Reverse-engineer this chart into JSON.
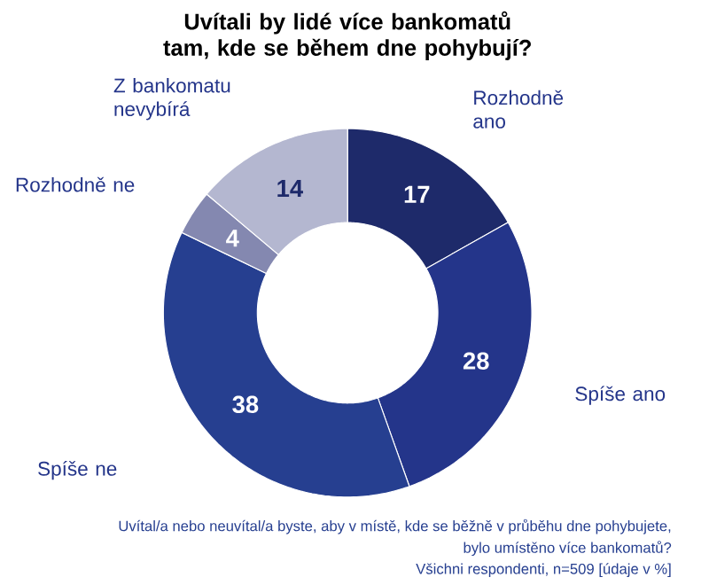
{
  "chart_data": {
    "type": "donut",
    "title": "Uvítali by lidé více bankomatů tam, kde se během dne pohybují?",
    "categories": [
      "Rozhodně ano",
      "Spíše ano",
      "Spíše ne",
      "Rozhodně ne",
      "Z bankomatu nevybírá"
    ],
    "values": [
      17,
      28,
      38,
      4,
      14
    ],
    "colors": [
      "#1e2a6a",
      "#24358a",
      "#263f90",
      "#8488b0",
      "#b4b7d0"
    ],
    "data_labels": true,
    "annotations": [
      "Uvítal/a nebo neuvítal/a byste, aby v místě, kde se běžně v průběhu dne pohybujete,",
      "bylo umístěno více bankomatů?",
      "Všichni respondenti, n=509 [údaje v %]"
    ]
  }
}
